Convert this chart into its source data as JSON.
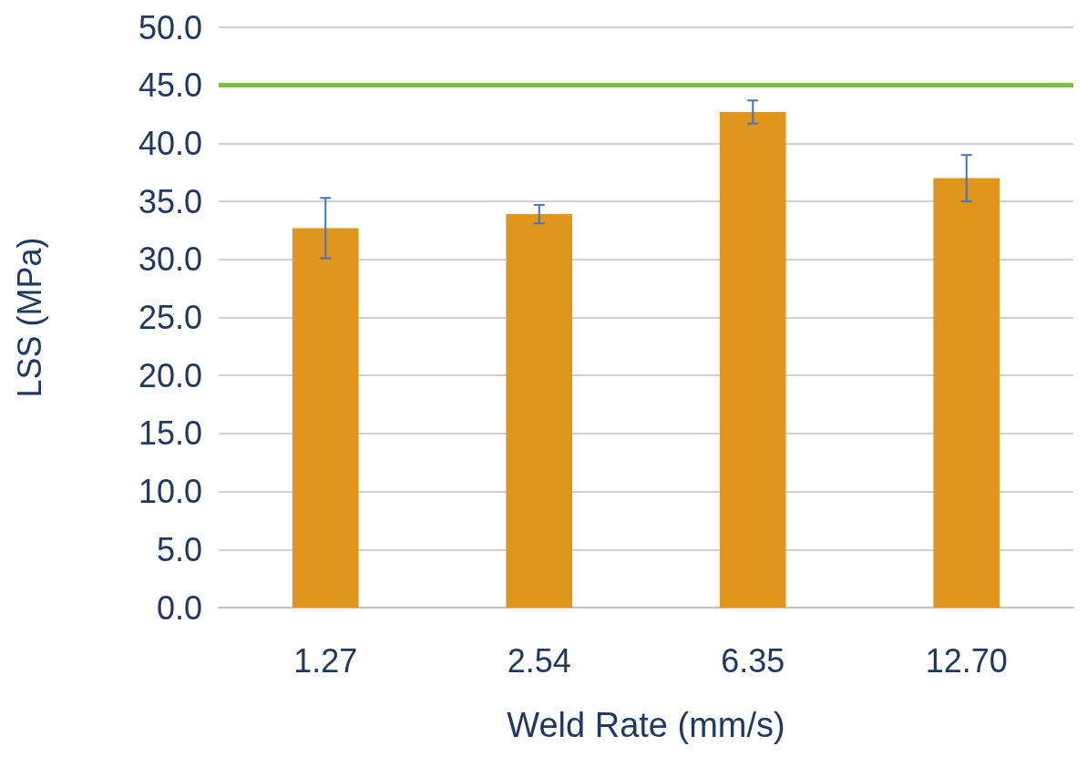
{
  "chart_data": {
    "type": "bar",
    "xlabel": "Weld Rate (mm/s)",
    "ylabel": "LSS (MPa)",
    "categories": [
      "1.27",
      "2.54",
      "6.35",
      "12.70"
    ],
    "values": [
      32.7,
      33.9,
      42.7,
      37.0
    ],
    "errors": [
      2.6,
      0.8,
      1.0,
      2.0
    ],
    "color": "#e0961a",
    "ylim": [
      0,
      50
    ],
    "yticks": [
      {
        "value": 0,
        "label": "0.0"
      },
      {
        "value": 5,
        "label": "5.0"
      },
      {
        "value": 10,
        "label": "10.0"
      },
      {
        "value": 15,
        "label": "15.0"
      },
      {
        "value": 20,
        "label": "20.0"
      },
      {
        "value": 25,
        "label": "25.0"
      },
      {
        "value": 30,
        "label": "30.0"
      },
      {
        "value": 35,
        "label": "35.0"
      },
      {
        "value": 40,
        "label": "40.0"
      },
      {
        "value": 45,
        "label": "45.0"
      },
      {
        "value": 50,
        "label": "50.0"
      }
    ],
    "ref_lines": [
      {
        "axis": "y",
        "value": 45,
        "label": null,
        "color": "#7ac143"
      }
    ],
    "grid": "y"
  }
}
